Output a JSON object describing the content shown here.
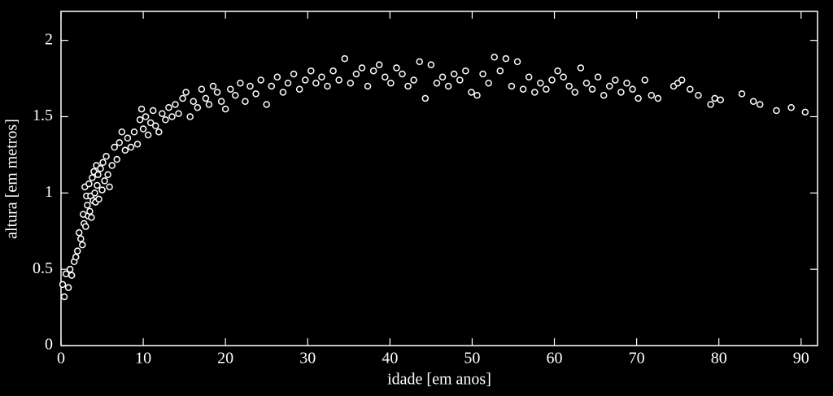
{
  "chart_data": {
    "type": "scatter",
    "xlabel": "idade [em anos]",
    "ylabel": "altura [em metros]",
    "xlim": [
      0,
      92
    ],
    "ylim": [
      0,
      2.19
    ],
    "xticks": [
      0,
      10,
      20,
      30,
      40,
      50,
      60,
      70,
      80,
      90
    ],
    "yticks": [
      0,
      0.5,
      1,
      1.5,
      2
    ],
    "color": "#ffffff",
    "background": "#000000",
    "x": [
      0.2,
      0.4,
      0.6,
      0.9,
      1.1,
      1.3,
      1.6,
      1.8,
      2.0,
      2.2,
      2.4,
      2.6,
      2.7,
      2.8,
      2.9,
      3.0,
      3.1,
      3.2,
      3.3,
      3.4,
      3.5,
      3.6,
      3.7,
      3.8,
      3.9,
      4.0,
      4.1,
      4.2,
      4.3,
      4.4,
      4.5,
      4.6,
      4.8,
      5.0,
      5.1,
      5.3,
      5.5,
      5.7,
      5.9,
      6.2,
      6.5,
      6.8,
      7.1,
      7.4,
      7.8,
      8.1,
      8.5,
      8.9,
      9.3,
      9.6,
      9.8,
      10.0,
      10.3,
      10.6,
      10.9,
      11.2,
      11.5,
      11.9,
      12.3,
      12.7,
      13.1,
      13.5,
      13.9,
      14.3,
      14.8,
      15.2,
      15.7,
      16.1,
      16.6,
      17.1,
      17.6,
      18.0,
      18.5,
      19.0,
      19.5,
      20.0,
      20.6,
      21.2,
      21.8,
      22.4,
      23.0,
      23.7,
      24.3,
      25.0,
      25.6,
      26.3,
      27.0,
      27.6,
      28.3,
      29.0,
      29.7,
      30.4,
      31.0,
      31.7,
      32.4,
      33.1,
      33.8,
      34.5,
      35.2,
      35.9,
      36.6,
      37.3,
      38.0,
      38.7,
      39.4,
      40.1,
      40.8,
      41.5,
      42.2,
      42.9,
      43.6,
      44.3,
      45.0,
      45.7,
      46.4,
      47.1,
      47.8,
      48.5,
      49.2,
      49.9,
      50.6,
      51.3,
      52.0,
      52.7,
      53.4,
      54.1,
      54.8,
      55.5,
      56.2,
      56.9,
      57.6,
      58.3,
      59.0,
      59.7,
      60.4,
      61.1,
      61.8,
      62.5,
      63.2,
      63.9,
      64.6,
      65.3,
      66.0,
      66.7,
      67.4,
      68.1,
      68.8,
      69.5,
      70.2,
      71.0,
      71.8,
      72.6,
      74.5,
      75.0,
      75.5,
      76.5,
      77.5,
      79.0,
      79.5,
      80.2,
      82.8,
      84.2,
      85.0,
      87.0,
      88.8,
      90.5
    ],
    "y": [
      0.4,
      0.32,
      0.47,
      0.38,
      0.5,
      0.46,
      0.55,
      0.58,
      0.62,
      0.74,
      0.7,
      0.66,
      0.86,
      0.8,
      1.04,
      0.78,
      0.98,
      0.92,
      0.85,
      1.06,
      0.88,
      0.98,
      0.84,
      1.1,
      0.95,
      1.14,
      1.0,
      0.94,
      1.18,
      1.05,
      1.12,
      0.96,
      1.16,
      1.02,
      1.2,
      1.08,
      1.24,
      1.12,
      1.04,
      1.18,
      1.3,
      1.22,
      1.33,
      1.4,
      1.28,
      1.36,
      1.3,
      1.4,
      1.32,
      1.48,
      1.55,
      1.42,
      1.5,
      1.38,
      1.46,
      1.54,
      1.44,
      1.4,
      1.52,
      1.48,
      1.56,
      1.5,
      1.58,
      1.52,
      1.62,
      1.66,
      1.5,
      1.6,
      1.56,
      1.68,
      1.62,
      1.58,
      1.7,
      1.66,
      1.6,
      1.55,
      1.68,
      1.64,
      1.72,
      1.6,
      1.7,
      1.65,
      1.74,
      1.58,
      1.7,
      1.76,
      1.66,
      1.72,
      1.78,
      1.68,
      1.74,
      1.8,
      1.72,
      1.76,
      1.7,
      1.8,
      1.74,
      1.88,
      1.72,
      1.78,
      1.82,
      1.7,
      1.8,
      1.84,
      1.76,
      1.72,
      1.82,
      1.78,
      1.7,
      1.74,
      1.86,
      1.62,
      1.84,
      1.72,
      1.76,
      1.7,
      1.78,
      1.74,
      1.8,
      1.66,
      1.64,
      1.78,
      1.72,
      1.89,
      1.8,
      1.88,
      1.7,
      1.86,
      1.68,
      1.76,
      1.66,
      1.72,
      1.68,
      1.74,
      1.8,
      1.76,
      1.7,
      1.66,
      1.82,
      1.72,
      1.68,
      1.76,
      1.64,
      1.7,
      1.74,
      1.66,
      1.72,
      1.68,
      1.62,
      1.74,
      1.64,
      1.62,
      1.7,
      1.72,
      1.74,
      1.68,
      1.64,
      1.58,
      1.62,
      1.61,
      1.65,
      1.6,
      1.58,
      1.54,
      1.56,
      1.53
    ]
  }
}
